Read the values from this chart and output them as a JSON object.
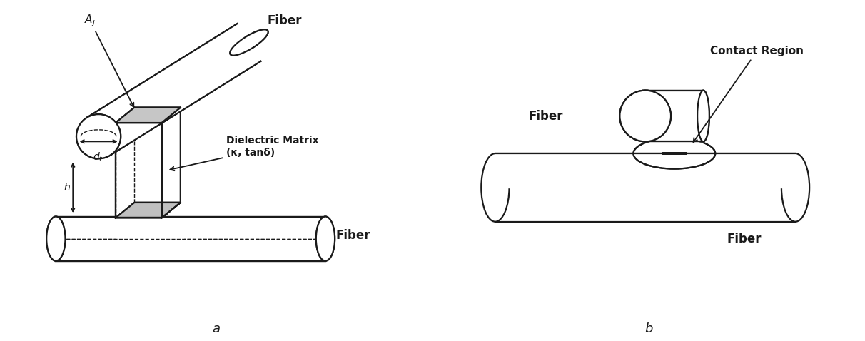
{
  "fig_width": 12.12,
  "fig_height": 4.78,
  "bg_color": "#ffffff",
  "label_a": "a",
  "label_b": "b",
  "line_color": "#1a1a1a",
  "gray_fill": "#c0c0c0",
  "dark_fill": "#1a1a1a",
  "fiber_label_top_a": "Fiber",
  "fiber_label_bot_a": "Fiber",
  "dielectric_label_line1": "Dielectric Matrix",
  "dielectric_label_line2": "(κ, tanδ)",
  "aj_label": "A_j",
  "df_label": "d_f",
  "h_label": "h",
  "fiber_label_top_b": "Fiber",
  "fiber_label_bot_b": "Fiber",
  "contact_label": "Contact Region"
}
